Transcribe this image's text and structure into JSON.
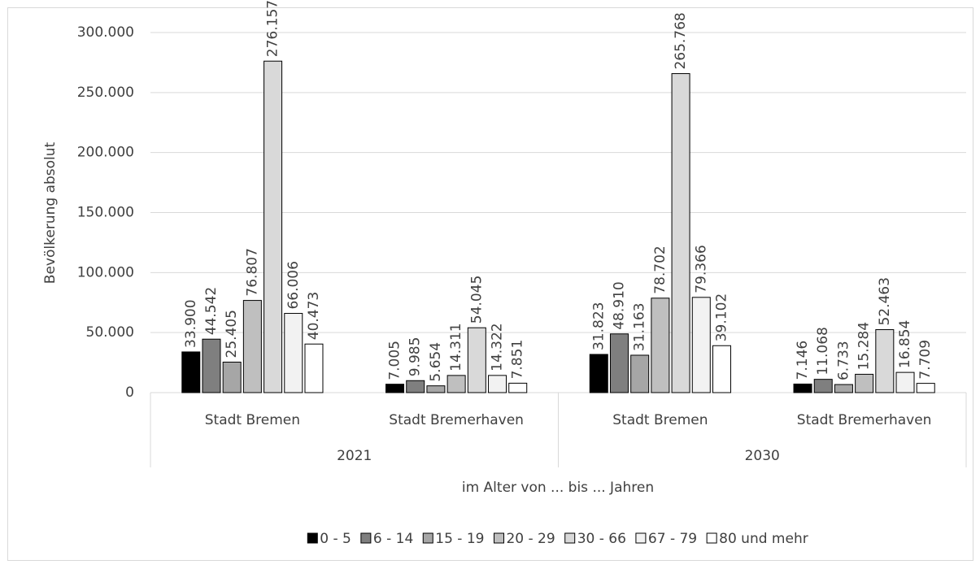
{
  "chart_data": {
    "type": "bar",
    "x_label": "im Alter von ... bis ... Jahren",
    "y_label": "Bevölkerung absolut",
    "categories": [
      "Stadt Bremen",
      "Stadt Bremerhaven",
      "Stadt Bremen",
      "Stadt Bremerhaven"
    ],
    "groups": [
      "2021",
      "2030"
    ],
    "series": [
      {
        "name": "0 - 5",
        "color": "#000000",
        "values": [
          33900,
          7005,
          31823,
          7146
        ],
        "value_labels": [
          "33.900",
          "7.005",
          "31.823",
          "7.146"
        ]
      },
      {
        "name": "6 - 14",
        "color": "#7f7f7f",
        "values": [
          44542,
          9985,
          48910,
          11068
        ],
        "value_labels": [
          "44.542",
          "9.985",
          "48.910",
          "11.068"
        ]
      },
      {
        "name": "15 - 19",
        "color": "#a6a6a6",
        "values": [
          25405,
          5654,
          31163,
          6733
        ],
        "value_labels": [
          "25.405",
          "5.654",
          "31.163",
          "6.733"
        ]
      },
      {
        "name": "20 - 29",
        "color": "#bfbfbf",
        "values": [
          76807,
          14311,
          78702,
          15284
        ],
        "value_labels": [
          "76.807",
          "14.311",
          "78.702",
          "15.284"
        ]
      },
      {
        "name": "30 - 66",
        "color": "#d9d9d9",
        "values": [
          276157,
          54045,
          265768,
          52463
        ],
        "value_labels": [
          "276.157",
          "54.045",
          "265.768",
          "52.463"
        ]
      },
      {
        "name": "67 - 79",
        "color": "#f2f2f2",
        "values": [
          66006,
          14322,
          79366,
          16854
        ],
        "value_labels": [
          "66.006",
          "14.322",
          "79.366",
          "16.854"
        ]
      },
      {
        "name": "80 und mehr",
        "color": "#ffffff",
        "values": [
          40473,
          7851,
          39102,
          7709
        ],
        "value_labels": [
          "40.473",
          "7.851",
          "39.102",
          "7.709"
        ]
      }
    ],
    "ylim": [
      0,
      300000
    ],
    "yticks": [
      0,
      {
        "value": 50000,
        "label": "50.000"
      },
      {
        "value": 100000,
        "label": "100.000"
      },
      {
        "value": 150000,
        "label": "150.000"
      },
      {
        "value": 200000,
        "label": "200.000"
      },
      {
        "value": 250000,
        "label": "250.000"
      },
      {
        "value": 300000,
        "label": "300.000"
      }
    ],
    "grid": true,
    "legend": "bottom"
  }
}
